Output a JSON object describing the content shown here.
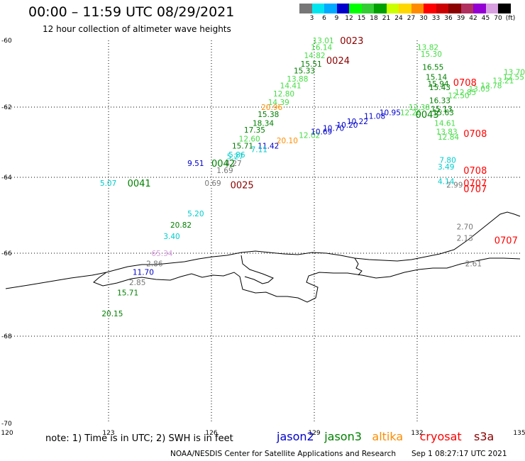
{
  "title": "00:00 – 11:59 UTC 08/29/2021",
  "subtitle": "12 hour collection of altimeter wave heights",
  "colorbar": {
    "colors": [
      "#777777",
      "#00e5ee",
      "#00aaff",
      "#0000cd",
      "#00ff00",
      "#33cc33",
      "#00a000",
      "#ccff00",
      "#ffd700",
      "#ff8c00",
      "#ff0000",
      "#cc0000",
      "#8b0000",
      "#b03060",
      "#9400d3",
      "#d8a0e0",
      "#000000"
    ],
    "labels": [
      "3",
      "6",
      "9",
      "12",
      "15",
      "18",
      "21",
      "24",
      "27",
      "30",
      "33",
      "36",
      "39",
      "42",
      "45",
      "70",
      "(ft)"
    ]
  },
  "axes": {
    "lat_labels": [
      "-60",
      "-62",
      "-64",
      "-66",
      "-68",
      "-70"
    ],
    "lon_labels": [
      "120",
      "123",
      "126",
      "129",
      "132",
      "135"
    ]
  },
  "note": "note:  1) Time is in UTC;  2) SWH is in feet",
  "satellites": [
    {
      "name": "jason2",
      "color": "#0000cd"
    },
    {
      "name": "jason3",
      "color": "#008000"
    },
    {
      "name": "altika",
      "color": "#ff8c00"
    },
    {
      "name": "cryosat",
      "color": "#ff0000"
    },
    {
      "name": "s3a",
      "color": "#8b0000"
    }
  ],
  "credit": "NOAA/NESDIS Center for Satellite Applications and Research",
  "stamp": "Sep  1 08:27:17 UTC 2021",
  "labels": [
    {
      "t": "13.01",
      "c": "#44dd44",
      "lon": 128.95,
      "lat": -60.0
    },
    {
      "t": "16.14",
      "c": "#44dd44",
      "lon": 128.9,
      "lat": -60.2
    },
    {
      "t": "14.82",
      "c": "#44dd44",
      "lon": 128.7,
      "lat": -60.45
    },
    {
      "t": "15.51",
      "c": "#008000",
      "lon": 128.6,
      "lat": -60.7
    },
    {
      "t": "15.33",
      "c": "#008000",
      "lon": 128.4,
      "lat": -60.9
    },
    {
      "t": "13.88",
      "c": "#44dd44",
      "lon": 128.2,
      "lat": -61.15
    },
    {
      "t": "14.41",
      "c": "#44dd44",
      "lon": 128.0,
      "lat": -61.35
    },
    {
      "t": "12.80",
      "c": "#44dd44",
      "lon": 127.8,
      "lat": -61.6
    },
    {
      "t": "14.39",
      "c": "#44dd44",
      "lon": 127.65,
      "lat": -61.85
    },
    {
      "t": "20.96",
      "c": "#ff8c00",
      "lon": 127.45,
      "lat": -62.0
    },
    {
      "t": "15.38",
      "c": "#008000",
      "lon": 127.35,
      "lat": -62.2
    },
    {
      "t": "18.34",
      "c": "#008000",
      "lon": 127.2,
      "lat": -62.45
    },
    {
      "t": "17.35",
      "c": "#008000",
      "lon": 126.95,
      "lat": -62.65
    },
    {
      "t": "12.60",
      "c": "#44dd44",
      "lon": 126.8,
      "lat": -62.9
    },
    {
      "t": "15.71",
      "c": "#008000",
      "lon": 126.6,
      "lat": -63.1
    },
    {
      "t": "11.42",
      "c": "#0000cd",
      "lon": 127.35,
      "lat": -63.1
    },
    {
      "t": "7.11",
      "c": "#00cccc",
      "lon": 127.15,
      "lat": -63.2
    },
    {
      "t": "5.86",
      "c": "#00cccc",
      "lon": 126.5,
      "lat": -63.35
    },
    {
      "t": "5.27",
      "c": "#00cccc",
      "lon": 126.45,
      "lat": -63.4
    },
    {
      "t": "4.27",
      "c": "#777777",
      "lon": 126.4,
      "lat": -63.6
    },
    {
      "t": "9.51",
      "c": "#0000cd",
      "lon": 125.3,
      "lat": -63.6
    },
    {
      "t": "1.69",
      "c": "#777777",
      "lon": 126.15,
      "lat": -63.8
    },
    {
      "t": "0.69",
      "c": "#777777",
      "lon": 125.8,
      "lat": -64.15
    },
    {
      "t": "5.07",
      "c": "#00cccc",
      "lon": 122.75,
      "lat": -64.15
    },
    {
      "t": "5.20",
      "c": "#00cccc",
      "lon": 125.3,
      "lat": -64.95
    },
    {
      "t": "20.82",
      "c": "#008000",
      "lon": 124.8,
      "lat": -65.25
    },
    {
      "t": "3.40",
      "c": "#00cccc",
      "lon": 124.6,
      "lat": -65.55
    },
    {
      "t": "65.34",
      "c": "#d8a0e0",
      "lon": 124.25,
      "lat": -66.0
    },
    {
      "t": "2.86",
      "c": "#777777",
      "lon": 124.1,
      "lat": -66.25
    },
    {
      "t": "11.70",
      "c": "#0000cd",
      "lon": 123.7,
      "lat": -66.45
    },
    {
      "t": "2.85",
      "c": "#777777",
      "lon": 123.6,
      "lat": -66.7
    },
    {
      "t": "15.71",
      "c": "#008000",
      "lon": 123.25,
      "lat": -66.95
    },
    {
      "t": "20.15",
      "c": "#008000",
      "lon": 122.8,
      "lat": -67.45
    },
    {
      "t": "20.10",
      "c": "#ff8c00",
      "lon": 127.9,
      "lat": -62.95
    },
    {
      "t": "12.02",
      "c": "#44dd44",
      "lon": 128.55,
      "lat": -62.8
    },
    {
      "t": "10.69",
      "c": "#0000cd",
      "lon": 128.9,
      "lat": -62.7
    },
    {
      "t": "10.70",
      "c": "#0000cd",
      "lon": 129.25,
      "lat": -62.6
    },
    {
      "t": "10.20",
      "c": "#0000cd",
      "lon": 129.65,
      "lat": -62.5
    },
    {
      "t": "10.22",
      "c": "#0000cd",
      "lon": 129.95,
      "lat": -62.4
    },
    {
      "t": "11.08",
      "c": "#0000cd",
      "lon": 130.45,
      "lat": -62.25
    },
    {
      "t": "10.95",
      "c": "#0000cd",
      "lon": 130.9,
      "lat": -62.15
    },
    {
      "t": "13.82",
      "c": "#44dd44",
      "lon": 132.0,
      "lat": -60.2
    },
    {
      "t": "15.30",
      "c": "#44dd44",
      "lon": 132.1,
      "lat": -60.4
    },
    {
      "t": "16.55",
      "c": "#008000",
      "lon": 132.15,
      "lat": -60.8
    },
    {
      "t": "15.14",
      "c": "#008000",
      "lon": 132.25,
      "lat": -61.1
    },
    {
      "t": "15.94",
      "c": "#008000",
      "lon": 132.3,
      "lat": -61.3
    },
    {
      "t": "15.43",
      "c": "#008000",
      "lon": 132.35,
      "lat": -61.4
    },
    {
      "t": "16.33",
      "c": "#008000",
      "lon": 132.35,
      "lat": -61.8
    },
    {
      "t": "15.13",
      "c": "#008000",
      "lon": 132.4,
      "lat": -62.05
    },
    {
      "t": "15.63",
      "c": "#008000",
      "lon": 132.45,
      "lat": -62.15
    },
    {
      "t": "14.61",
      "c": "#44dd44",
      "lon": 132.5,
      "lat": -62.45
    },
    {
      "t": "13.83",
      "c": "#44dd44",
      "lon": 132.55,
      "lat": -62.7
    },
    {
      "t": "12.84",
      "c": "#44dd44",
      "lon": 132.6,
      "lat": -62.85
    },
    {
      "t": "12.50",
      "c": "#44dd44",
      "lon": 132.9,
      "lat": -61.65
    },
    {
      "t": "12.85",
      "c": "#44dd44",
      "lon": 133.1,
      "lat": -61.55
    },
    {
      "t": "13.05",
      "c": "#44dd44",
      "lon": 133.5,
      "lat": -61.45
    },
    {
      "t": "13.78",
      "c": "#44dd44",
      "lon": 133.85,
      "lat": -61.35
    },
    {
      "t": "13.21",
      "c": "#44dd44",
      "lon": 134.2,
      "lat": -61.2
    },
    {
      "t": "12.55",
      "c": "#44dd44",
      "lon": 134.5,
      "lat": -61.1
    },
    {
      "t": "13.70",
      "c": "#44dd44",
      "lon": 134.75,
      "lat": -60.95
    },
    {
      "t": "12.26",
      "c": "#44dd44",
      "lon": 131.5,
      "lat": -62.15
    },
    {
      "t": "12.38",
      "c": "#44dd44",
      "lon": 131.75,
      "lat": -62.0
    },
    {
      "t": "7.80",
      "c": "#00cccc",
      "lon": 132.65,
      "lat": -63.5
    },
    {
      "t": "3.49",
      "c": "#00cccc",
      "lon": 132.6,
      "lat": -63.7
    },
    {
      "t": "4.14",
      "c": "#00cccc",
      "lon": 132.6,
      "lat": -64.1
    },
    {
      "t": "2.99",
      "c": "#777777",
      "lon": 132.85,
      "lat": -64.2
    },
    {
      "t": "2.70",
      "c": "#777777",
      "lon": 133.15,
      "lat": -65.3
    },
    {
      "t": "2.13",
      "c": "#777777",
      "lon": 133.15,
      "lat": -65.6
    },
    {
      "t": "2.61",
      "c": "#777777",
      "lon": 133.4,
      "lat": -66.25
    }
  ],
  "times": [
    {
      "t": "0023",
      "c": "#8b0000",
      "lon": 129.75,
      "lat": -60.0
    },
    {
      "t": "0024",
      "c": "#8b0000",
      "lon": 129.35,
      "lat": -60.6
    },
    {
      "t": "0042",
      "c": "#008000",
      "lon": 126.0,
      "lat": -63.6
    },
    {
      "t": "0041",
      "c": "#008000",
      "lon": 123.55,
      "lat": -64.15
    },
    {
      "t": "0025",
      "c": "#8b0000",
      "lon": 126.55,
      "lat": -64.2
    },
    {
      "t": "0043",
      "c": "#008000",
      "lon": 131.95,
      "lat": -62.2
    },
    {
      "t": "0708",
      "c": "#ff0000",
      "lon": 133.05,
      "lat": -61.25
    },
    {
      "t": "0708",
      "c": "#ff0000",
      "lon": 133.35,
      "lat": -62.75
    },
    {
      "t": "0708",
      "c": "#ff0000",
      "lon": 133.35,
      "lat": -63.8
    },
    {
      "t": "0707",
      "c": "#ff0000",
      "lon": 133.35,
      "lat": -64.15
    },
    {
      "t": "0707",
      "c": "#ff0000",
      "lon": 133.35,
      "lat": -64.3
    },
    {
      "t": "0707",
      "c": "#ff0000",
      "lon": 134.25,
      "lat": -65.65
    }
  ]
}
